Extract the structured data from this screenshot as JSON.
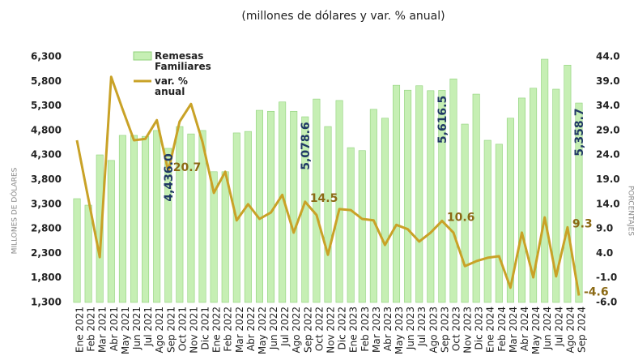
{
  "chart_data": {
    "type": "bar_line",
    "title": "(millones de dólares y var. % anual)",
    "ylabel": "MILLONES DE DÓLARES",
    "y2label": "PORCENTAJES",
    "categories": [
      "Ene 2021",
      "Feb 2021",
      "Mar 2021",
      "Abr 2021",
      "May 2021",
      "Jun 2021",
      "Jul 2021",
      "Ago 2021",
      "Sep 2021",
      "Oct 2021",
      "Nov 2021",
      "Dic 2021",
      "Ene 2022",
      "Feb 2022",
      "Mar 2022",
      "Abr 2022",
      "May 2022",
      "Jun 2022",
      "Jul 2022",
      "Ago 2022",
      "Sep 2022",
      "Oct 2022",
      "Nov 2022",
      "Dic 2022",
      "Ene 2023",
      "Feb 2023",
      "Mar 2023",
      "Abr 2023",
      "May 2023",
      "Jun 2023",
      "Jul 2023",
      "Ago 2023",
      "Sep 2023",
      "Oct 2023",
      "Nov 2023",
      "Dic 2023",
      "Ene 2024",
      "Feb 2024",
      "Mar 2024",
      "Abr 2024",
      "May 2024",
      "Jun 2024",
      "Jul 2024",
      "Ago 2024",
      "Sep 2024"
    ],
    "series": [
      {
        "name": "Remesas Familiares",
        "color": "#c6efb4",
        "values": [
          3412,
          3280,
          4303,
          4190,
          4700,
          4700,
          4680,
          4800,
          4436.0,
          4880,
          4730,
          4800,
          3960,
          3960,
          4750,
          4780,
          5210,
          5190,
          5380,
          5190,
          5078.6,
          5440,
          4880,
          5410,
          4450,
          4390,
          5230,
          5050,
          5720,
          5620,
          5710,
          5610,
          5616.5,
          5850,
          4930,
          5540,
          4600,
          4520,
          5050,
          5460,
          5660,
          6250,
          5640,
          6130,
          5358.7
        ],
        "value_labels": [
          null,
          null,
          null,
          null,
          null,
          null,
          null,
          null,
          "4,436.0",
          null,
          null,
          null,
          null,
          null,
          null,
          null,
          null,
          null,
          null,
          null,
          "5,078.6",
          null,
          null,
          null,
          null,
          null,
          null,
          null,
          null,
          null,
          null,
          null,
          "5,616.5",
          null,
          null,
          null,
          null,
          null,
          null,
          null,
          null,
          null,
          null,
          null,
          "5,358.7"
        ]
      },
      {
        "name": "var. % anual",
        "color": "#c9a227",
        "axis": "y2",
        "values": [
          27.0,
          15.1,
          3.2,
          39.9,
          33.3,
          27.0,
          27.3,
          31.1,
          20.7,
          30.8,
          34.4,
          26.7,
          16.3,
          20.6,
          10.7,
          14.0,
          11.0,
          12.3,
          15.9,
          8.2,
          14.5,
          11.8,
          3.7,
          13.0,
          12.8,
          11.0,
          10.7,
          5.7,
          9.8,
          8.9,
          6.4,
          8.2,
          10.6,
          8.2,
          1.4,
          2.4,
          3.1,
          3.4,
          -3.0,
          8.2,
          -0.9,
          11.3,
          -0.7,
          9.3,
          -4.6
        ],
        "value_labels": [
          null,
          null,
          null,
          null,
          null,
          null,
          null,
          null,
          "20.7",
          null,
          null,
          null,
          null,
          null,
          null,
          null,
          null,
          null,
          null,
          null,
          "14.5",
          null,
          null,
          null,
          null,
          null,
          null,
          null,
          null,
          null,
          null,
          null,
          "10.6",
          null,
          null,
          null,
          null,
          null,
          null,
          null,
          null,
          null,
          null,
          "9.3",
          "-4.6"
        ]
      }
    ],
    "ylim": [
      1300,
      6300
    ],
    "yticks": [
      {
        "value": 1300,
        "label": "1,300"
      },
      {
        "value": 1800,
        "label": "1,800"
      },
      {
        "value": 2300,
        "label": "2,300"
      },
      {
        "value": 2800,
        "label": "2,800"
      },
      {
        "value": 3300,
        "label": "3,300"
      },
      {
        "value": 3800,
        "label": "3,800"
      },
      {
        "value": 4300,
        "label": "4,300"
      },
      {
        "value": 4800,
        "label": "4,800"
      },
      {
        "value": 5300,
        "label": "5,300"
      },
      {
        "value": 5800,
        "label": "5,800"
      },
      {
        "value": 6300,
        "label": "6,300"
      }
    ],
    "y2lim": [
      -6,
      44
    ],
    "y2ticks": [
      {
        "value": -6,
        "label": "-6.0"
      },
      {
        "value": -1,
        "label": "-1.0"
      },
      {
        "value": 4,
        "label": "4.0"
      },
      {
        "value": 9,
        "label": "9.0"
      },
      {
        "value": 14,
        "label": "14.0"
      },
      {
        "value": 19,
        "label": "19.0"
      },
      {
        "value": 24,
        "label": "24.0"
      },
      {
        "value": 29,
        "label": "29.0"
      },
      {
        "value": 34,
        "label": "34.0"
      },
      {
        "value": 39,
        "label": "39.0"
      },
      {
        "value": 44,
        "label": "44.0"
      }
    ]
  }
}
